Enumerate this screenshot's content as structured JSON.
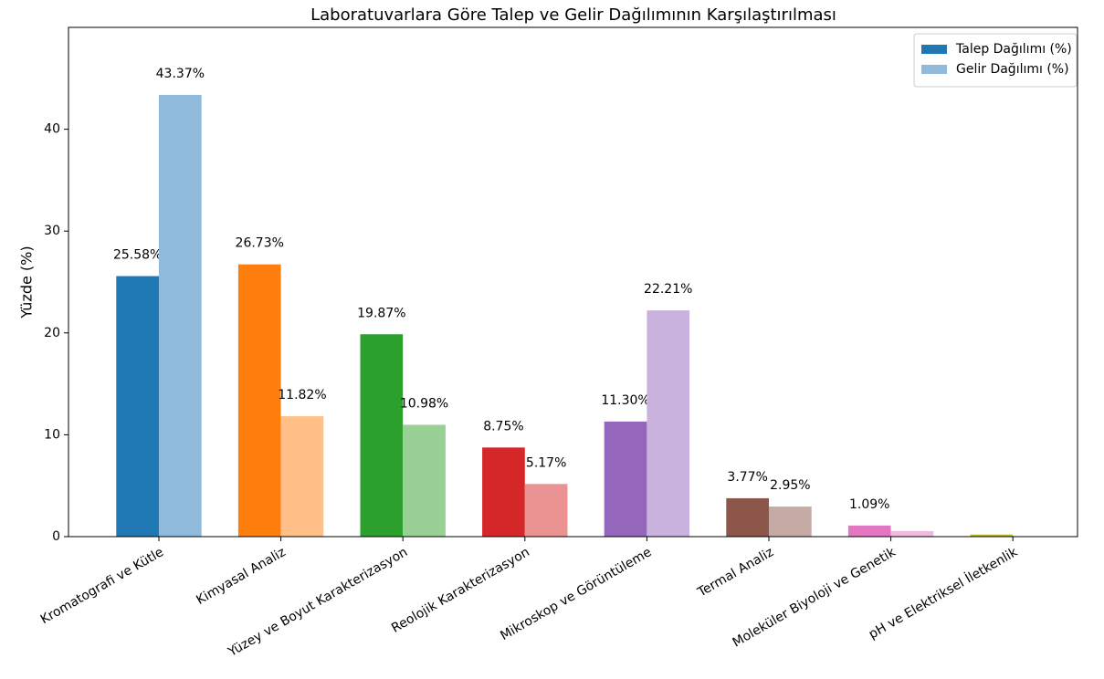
{
  "chart_data": {
    "type": "bar",
    "title": "Laboratuvarlara Göre Talep ve Gelir Dağılımının Karşılaştırılması",
    "ylabel": "Yüzde (%)",
    "categories": [
      "Kromatografi ve Kütle",
      "Kimyasal Analiz",
      "Yüzey ve Boyut Karakterizasyon",
      "Reolojik Karakterizasyon",
      "Mikroskop ve Görüntüleme",
      "Termal Analiz",
      "Moleküler Biyoloji ve Genetik",
      "pH ve Elektriksel İletkenlik"
    ],
    "series": [
      {
        "name": "Talep Dağılımı (%)",
        "color": "#1f77b4",
        "colors": [
          "#1f77b4",
          "#ff7f0e",
          "#2ca02c",
          "#d62728",
          "#9467bd",
          "#8c564b",
          "#e377c2",
          "#bcbd22"
        ],
        "values": [
          25.58,
          26.73,
          19.87,
          8.75,
          11.3,
          3.77,
          1.09,
          0.2
        ],
        "value_labels": [
          "25.58%",
          "26.73%",
          "19.87%",
          "8.75%",
          "11.30%",
          "3.77%",
          "1.09%",
          null
        ]
      },
      {
        "name": "Gelir Dağılımı (%)",
        "color": "#8fbadb",
        "colors": [
          "#8fbadb",
          "#ffbf86",
          "#98d095",
          "#eb9393",
          "#c9b3de",
          "#c5aaa5",
          "#f1bbe0",
          "#dede91"
        ],
        "values": [
          43.37,
          11.82,
          10.98,
          5.17,
          22.21,
          2.95,
          0.55,
          0.02
        ],
        "value_labels": [
          "43.37%",
          "11.82%",
          "10.98%",
          "5.17%",
          "22.21%",
          "2.95%",
          null,
          null
        ]
      }
    ],
    "ylim": [
      0,
      50
    ],
    "yticks": [
      0,
      10,
      20,
      30,
      40
    ],
    "grid": false,
    "legend": "upper right"
  }
}
